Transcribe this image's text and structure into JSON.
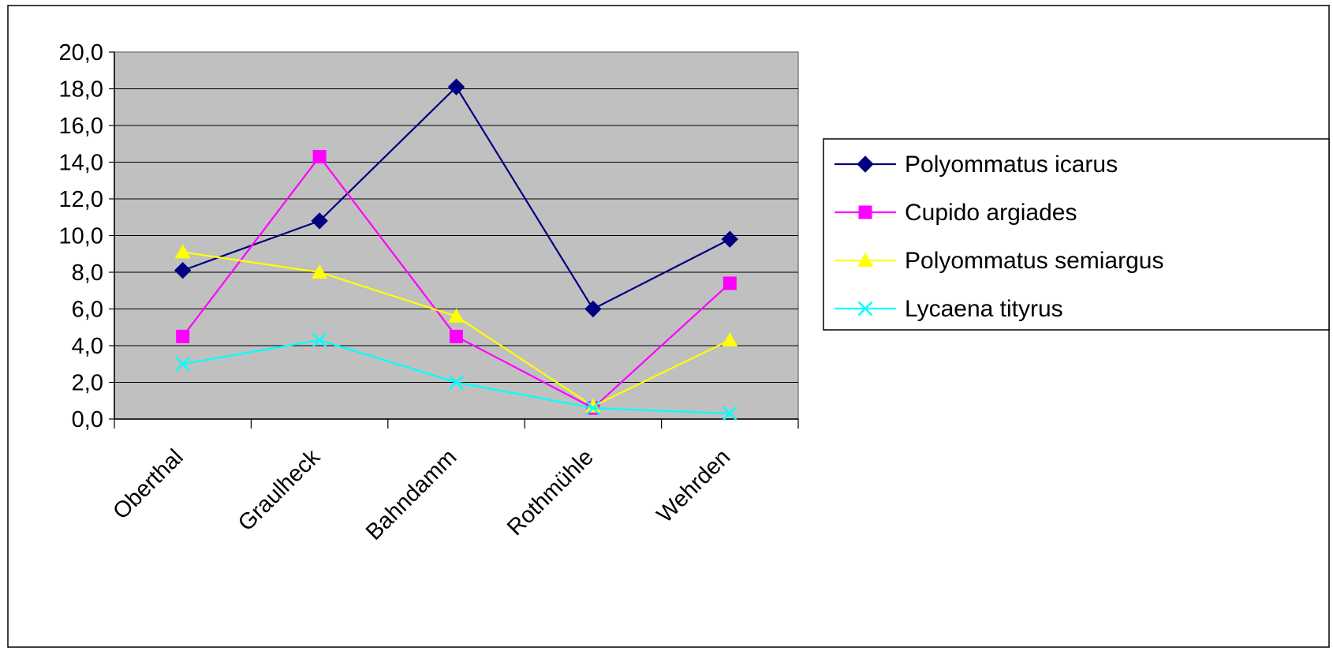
{
  "chart_data": {
    "type": "line",
    "categories": [
      "Oberthal",
      "Graulheck",
      "Bahndamm",
      "Rothmühle",
      "Wehrden"
    ],
    "ylim": [
      0,
      20
    ],
    "yticks": [
      "0,0",
      "2,0",
      "4,0",
      "6,0",
      "8,0",
      "10,0",
      "12,0",
      "14,0",
      "16,0",
      "18,0",
      "20,0"
    ],
    "ytick_values": [
      0,
      2,
      4,
      6,
      8,
      10,
      12,
      14,
      16,
      18,
      20
    ],
    "grid": true,
    "plot_background": "#C0C0C0",
    "legend_position": "right",
    "series": [
      {
        "name": "Polyommatus icarus",
        "color": "#000080",
        "marker": "diamond",
        "values": [
          8.1,
          10.8,
          18.1,
          6.0,
          9.8
        ]
      },
      {
        "name": "Cupido argiades",
        "color": "#FF00FF",
        "marker": "square",
        "values": [
          4.5,
          14.3,
          4.5,
          0.6,
          7.4
        ]
      },
      {
        "name": "Polyommatus semiargus",
        "color": "#FFFF00",
        "marker": "triangle",
        "values": [
          9.1,
          8.0,
          5.6,
          0.7,
          4.3
        ]
      },
      {
        "name": "Lycaena tityrus",
        "color": "#00FFFF",
        "marker": "x",
        "values": [
          3.0,
          4.3,
          2.0,
          0.6,
          0.3
        ]
      }
    ]
  }
}
